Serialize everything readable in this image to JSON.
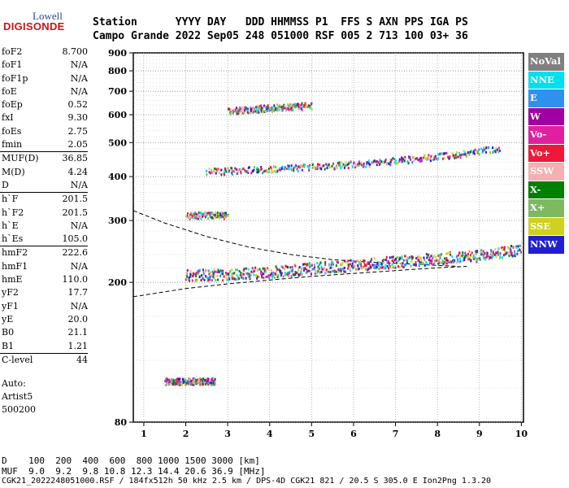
{
  "logo": {
    "top": "Lowell",
    "main": "DIGISONDE"
  },
  "header": {
    "line1": "Station      YYYY DAY   DDD HHMMSS P1  FFS S AXN PPS IGA PS",
    "line2": "Campo Grande 2022 Sep05 248 051000 RSF 005 2 713 100 03+ 36"
  },
  "params": {
    "group1": [
      {
        "k": "foF2",
        "v": "8.700"
      },
      {
        "k": "foF1",
        "v": "N/A"
      },
      {
        "k": "foF1p",
        "v": "N/A"
      },
      {
        "k": "foE",
        "v": "N/A"
      },
      {
        "k": "foEp",
        "v": "0.52"
      },
      {
        "k": "fxI",
        "v": "9.30"
      },
      {
        "k": "foEs",
        "v": "2.75"
      },
      {
        "k": "fmin",
        "v": "2.05"
      }
    ],
    "group2": [
      {
        "k": "MUF(D)",
        "v": "36.85"
      },
      {
        "k": "M(D)",
        "v": "4.24"
      },
      {
        "k": "D",
        "v": "N/A"
      }
    ],
    "group3": [
      {
        "k": "h`F",
        "v": "201.5"
      },
      {
        "k": "h`F2",
        "v": "201.5"
      },
      {
        "k": "h`E",
        "v": "N/A"
      },
      {
        "k": "h`Es",
        "v": "105.0"
      }
    ],
    "group4": [
      {
        "k": "hmF2",
        "v": "222.6"
      },
      {
        "k": "hmF1",
        "v": "N/A"
      },
      {
        "k": "hmE",
        "v": "110.0"
      },
      {
        "k": "yF2",
        "v": "17.7"
      },
      {
        "k": "yF1",
        "v": "N/A"
      },
      {
        "k": "yE",
        "v": "20.0"
      },
      {
        "k": "B0",
        "v": "21.1"
      },
      {
        "k": "B1",
        "v": "1.21"
      }
    ],
    "group5": [
      {
        "k": "C-level",
        "v": "44"
      }
    ]
  },
  "auto": {
    "line1": "Auto:",
    "line2": "Artist5",
    "line3": "500200"
  },
  "footer": {
    "line1": "D    100  200  400  600  800 1000 1500 3000 [km]",
    "line2": "MUF  9.0  9.2  9.8 10.8 12.3 14.4 20.6 36.9 [MHz]",
    "line3": "CGK21_2022248051000.RSF / 184fx512h 50 kHz 2.5 km / DPS-4D CGK21 821 / 20.5 S 305.0 E Ion2Png 1.3.20"
  },
  "legend": [
    {
      "label": "NoVal",
      "color": "#808080"
    },
    {
      "label": "NNE",
      "color": "#00e0f0"
    },
    {
      "label": "E",
      "color": "#3090f0"
    },
    {
      "label": "W",
      "color": "#a000a0"
    },
    {
      "label": "Vo-",
      "color": "#e020a0"
    },
    {
      "label": "Vo+",
      "color": "#f01838"
    },
    {
      "label": "SSW",
      "color": "#f4b0b0"
    },
    {
      "label": "X-",
      "color": "#008000"
    },
    {
      "label": "X+",
      "color": "#80b860"
    },
    {
      "label": "SSE",
      "color": "#d0d020"
    },
    {
      "label": "NNW",
      "color": "#2020d0"
    }
  ],
  "chart_data": {
    "type": "scatter",
    "xlim": [
      0.75,
      10.05
    ],
    "ylim": [
      80,
      900
    ],
    "y_scale": "log",
    "x_ticks": [
      "1",
      "2",
      "3",
      "4",
      "5",
      "6",
      "7",
      "8",
      "9",
      "10"
    ],
    "y_ticks": [
      "80",
      "200",
      "300",
      "400",
      "500",
      "600",
      "700",
      "800",
      "900"
    ],
    "grid": true,
    "traces": [
      {
        "name": "F2 O-trace band",
        "x": [
          2.0,
          3.0,
          4.0,
          5.0,
          6.0,
          7.0,
          8.0,
          9.0,
          10.0
        ],
        "y": [
          210,
          212,
          215,
          220,
          225,
          230,
          235,
          240,
          250
        ]
      },
      {
        "name": "second hop band",
        "x": [
          2.5,
          3.5,
          4.5,
          5.5,
          6.5,
          7.5,
          8.5,
          9.5
        ],
        "y": [
          415,
          420,
          425,
          432,
          440,
          452,
          465,
          485
        ]
      },
      {
        "name": "Es trace",
        "x": [
          1.5,
          1.8,
          2.1,
          2.4,
          2.7
        ],
        "y": [
          105,
          105,
          105,
          105,
          105
        ]
      },
      {
        "name": "Es second hop",
        "x": [
          2.0,
          2.5,
          3.0
        ],
        "y": [
          312,
          312,
          312
        ]
      },
      {
        "name": "third hop",
        "x": [
          3.0,
          3.5,
          4.0,
          4.5,
          5.0
        ],
        "y": [
          618,
          625,
          630,
          635,
          640
        ]
      }
    ],
    "profile_curve": {
      "upper_x": [
        0.75,
        1.5,
        2.5,
        3.5,
        4.5,
        5.5,
        6.5,
        7.5,
        8.5
      ],
      "upper_y": [
        320,
        295,
        270,
        252,
        240,
        232,
        228,
        225,
        222
      ],
      "lower_x": [
        0.75,
        2.0,
        3.0,
        4.0,
        5.0,
        6.0,
        7.0,
        8.0,
        8.7
      ],
      "lower_y": [
        182,
        192,
        198,
        203,
        208,
        212,
        216,
        220,
        222
      ]
    }
  }
}
